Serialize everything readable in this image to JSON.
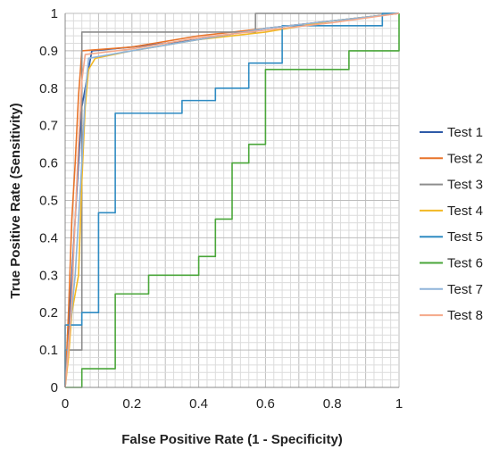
{
  "chart_data": {
    "type": "line",
    "title": "",
    "xlabel": "False Positive Rate (1 - Specificity)",
    "ylabel": "True Positive Rate (Sensitivity)",
    "xlim": [
      0,
      1
    ],
    "ylim": [
      0,
      1
    ],
    "grid": true,
    "legend": "right",
    "x_ticks": [
      "0",
      "0.2",
      "0.4",
      "0.6",
      "0.8",
      "1"
    ],
    "y_ticks": [
      "0",
      "0.1",
      "0.2",
      "0.3",
      "0.4",
      "0.5",
      "0.6",
      "0.7",
      "0.8",
      "0.9",
      "1"
    ],
    "series": [
      {
        "name": "Test 1",
        "color": "#2e5aa8",
        "points": [
          [
            0,
            0
          ],
          [
            0.01,
            0.15
          ],
          [
            0.02,
            0.3
          ],
          [
            0.03,
            0.45
          ],
          [
            0.04,
            0.6
          ],
          [
            0.05,
            0.75
          ],
          [
            0.07,
            0.85
          ],
          [
            0.08,
            0.9
          ],
          [
            0.2,
            0.91
          ],
          [
            0.4,
            0.93
          ],
          [
            0.6,
            0.96
          ],
          [
            0.8,
            0.98
          ],
          [
            1,
            1
          ]
        ]
      },
      {
        "name": "Test 2",
        "color": "#e8742a",
        "points": [
          [
            0,
            0
          ],
          [
            0.01,
            0.2
          ],
          [
            0.02,
            0.45
          ],
          [
            0.03,
            0.6
          ],
          [
            0.04,
            0.78
          ],
          [
            0.05,
            0.9
          ],
          [
            0.2,
            0.91
          ],
          [
            0.4,
            0.94
          ],
          [
            0.6,
            0.96
          ],
          [
            0.8,
            0.98
          ],
          [
            1,
            1
          ]
        ]
      },
      {
        "name": "Test 3",
        "color": "#8c8c8c",
        "points": [
          [
            0,
            0
          ],
          [
            0,
            0.1
          ],
          [
            0.05,
            0.1
          ],
          [
            0.05,
            0.95
          ],
          [
            0.57,
            0.95
          ],
          [
            0.57,
            1
          ],
          [
            1,
            1
          ]
        ]
      },
      {
        "name": "Test 4",
        "color": "#f2b824",
        "points": [
          [
            0,
            0
          ],
          [
            0.01,
            0.08
          ],
          [
            0.02,
            0.2
          ],
          [
            0.04,
            0.3
          ],
          [
            0.05,
            0.55
          ],
          [
            0.06,
            0.75
          ],
          [
            0.07,
            0.85
          ],
          [
            0.09,
            0.88
          ],
          [
            0.2,
            0.9
          ],
          [
            0.4,
            0.93
          ],
          [
            0.6,
            0.95
          ],
          [
            0.8,
            0.98
          ],
          [
            1,
            1
          ]
        ]
      },
      {
        "name": "Test 5",
        "color": "#2f8bc2",
        "points": [
          [
            0,
            0
          ],
          [
            0,
            0.167
          ],
          [
            0.05,
            0.167
          ],
          [
            0.05,
            0.2
          ],
          [
            0.1,
            0.2
          ],
          [
            0.1,
            0.467
          ],
          [
            0.15,
            0.467
          ],
          [
            0.15,
            0.733
          ],
          [
            0.35,
            0.733
          ],
          [
            0.35,
            0.767
          ],
          [
            0.45,
            0.767
          ],
          [
            0.45,
            0.8
          ],
          [
            0.55,
            0.8
          ],
          [
            0.55,
            0.867
          ],
          [
            0.65,
            0.867
          ],
          [
            0.65,
            0.967
          ],
          [
            0.95,
            0.967
          ],
          [
            0.95,
            1
          ],
          [
            1,
            1
          ]
        ]
      },
      {
        "name": "Test 6",
        "color": "#4aa63a",
        "points": [
          [
            0,
            0
          ],
          [
            0.05,
            0
          ],
          [
            0.05,
            0.05
          ],
          [
            0.15,
            0.05
          ],
          [
            0.15,
            0.25
          ],
          [
            0.25,
            0.25
          ],
          [
            0.25,
            0.3
          ],
          [
            0.4,
            0.3
          ],
          [
            0.4,
            0.35
          ],
          [
            0.45,
            0.35
          ],
          [
            0.45,
            0.45
          ],
          [
            0.5,
            0.45
          ],
          [
            0.5,
            0.6
          ],
          [
            0.55,
            0.6
          ],
          [
            0.55,
            0.65
          ],
          [
            0.6,
            0.65
          ],
          [
            0.6,
            0.85
          ],
          [
            0.85,
            0.85
          ],
          [
            0.85,
            0.9
          ],
          [
            1,
            0.9
          ],
          [
            1,
            1
          ]
        ]
      },
      {
        "name": "Test 7",
        "color": "#8fb4d9",
        "points": [
          [
            0,
            0
          ],
          [
            0.01,
            0.12
          ],
          [
            0.03,
            0.3
          ],
          [
            0.04,
            0.45
          ],
          [
            0.05,
            0.6
          ],
          [
            0.06,
            0.78
          ],
          [
            0.07,
            0.88
          ],
          [
            0.2,
            0.9
          ],
          [
            0.4,
            0.93
          ],
          [
            0.6,
            0.96
          ],
          [
            0.8,
            0.98
          ],
          [
            1,
            1
          ]
        ]
      },
      {
        "name": "Test 8",
        "color": "#f5a98a",
        "points": [
          [
            0,
            0
          ],
          [
            0.01,
            0.1
          ],
          [
            0.02,
            0.25
          ],
          [
            0.03,
            0.45
          ],
          [
            0.04,
            0.65
          ],
          [
            0.05,
            0.82
          ],
          [
            0.06,
            0.89
          ],
          [
            0.2,
            0.905
          ],
          [
            0.4,
            0.935
          ],
          [
            0.6,
            0.955
          ],
          [
            0.8,
            0.975
          ],
          [
            1,
            1
          ]
        ]
      }
    ]
  }
}
